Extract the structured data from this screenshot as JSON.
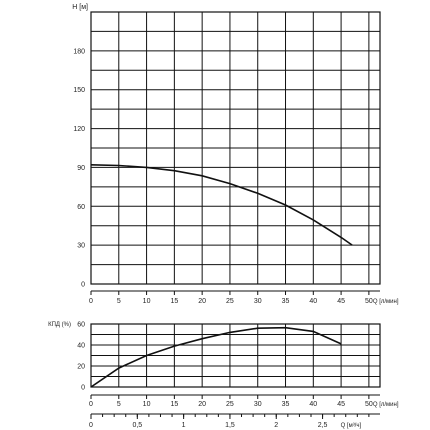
{
  "chart_data": [
    {
      "type": "line",
      "ylabel": "H [м]",
      "xlabel": "Q [л/мин]",
      "x_ticks": [
        0,
        5,
        10,
        15,
        20,
        25,
        30,
        35,
        40,
        45,
        50
      ],
      "y_ticks": [
        0,
        30,
        60,
        90,
        120,
        150,
        180
      ],
      "xlim": [
        0,
        52
      ],
      "ylim": [
        0,
        210
      ],
      "grid": true,
      "series": [
        {
          "x": [
            0,
            5,
            10,
            15,
            20,
            25,
            30,
            35,
            40,
            45,
            47
          ],
          "y": [
            92,
            91.5,
            90,
            87.5,
            83.5,
            77.5,
            70,
            61,
            49.5,
            36,
            30
          ]
        }
      ]
    },
    {
      "type": "line",
      "ylabel": "КПД (%)",
      "xlabel": "Q [л/мин]",
      "x_ticks": [
        0,
        5,
        10,
        15,
        20,
        25,
        30,
        35,
        40,
        45,
        50
      ],
      "y_ticks": [
        0,
        20,
        40,
        60
      ],
      "xlim": [
        0,
        52
      ],
      "ylim": [
        0,
        60
      ],
      "grid": true,
      "series": [
        {
          "x": [
            0,
            5,
            10,
            15,
            20,
            25,
            30,
            35,
            40,
            45
          ],
          "y": [
            0,
            18,
            30,
            39,
            46,
            52,
            56,
            56.5,
            53,
            41
          ]
        }
      ]
    },
    {
      "type": "axis",
      "xlabel": "Q [м³/ч]",
      "x_ticks": [
        "0",
        "0,5",
        "1",
        "1,5",
        "2",
        "2,5"
      ],
      "x_tick_values": [
        0,
        0.5,
        1,
        1.5,
        2,
        2.5
      ],
      "xlim": [
        0,
        3.12
      ]
    }
  ]
}
